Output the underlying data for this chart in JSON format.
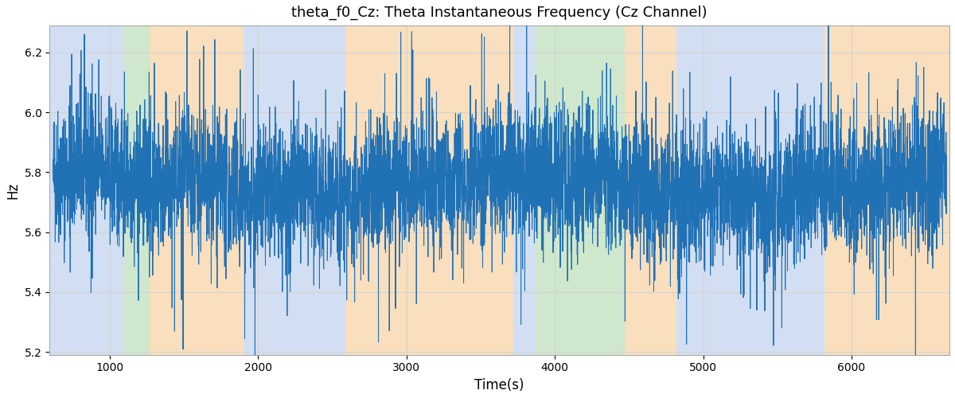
{
  "title": "theta_f0_Cz: Theta Instantaneous Frequency (Cz Channel)",
  "xlabel": "Time(s)",
  "ylabel": "Hz",
  "xlim": [
    595,
    6660
  ],
  "ylim": [
    5.19,
    6.29
  ],
  "yticks": [
    5.2,
    5.4,
    5.6,
    5.8,
    6.0,
    6.2
  ],
  "xticks": [
    1000,
    2000,
    3000,
    4000,
    5000,
    6000
  ],
  "line_color": "#2171b5",
  "line_width": 0.75,
  "bg_regions": [
    {
      "xmin": 595,
      "xmax": 1100,
      "color": "#aec6e8",
      "alpha": 0.55
    },
    {
      "xmin": 1100,
      "xmax": 1270,
      "color": "#a8d5a2",
      "alpha": 0.55
    },
    {
      "xmin": 1270,
      "xmax": 1900,
      "color": "#f5c58a",
      "alpha": 0.55
    },
    {
      "xmin": 1900,
      "xmax": 2460,
      "color": "#aec6e8",
      "alpha": 0.55
    },
    {
      "xmin": 2460,
      "xmax": 2590,
      "color": "#aec6e8",
      "alpha": 0.55
    },
    {
      "xmin": 2590,
      "xmax": 3720,
      "color": "#f5c58a",
      "alpha": 0.55
    },
    {
      "xmin": 3720,
      "xmax": 3870,
      "color": "#aec6e8",
      "alpha": 0.55
    },
    {
      "xmin": 3870,
      "xmax": 4470,
      "color": "#a8d5a2",
      "alpha": 0.55
    },
    {
      "xmin": 4470,
      "xmax": 4820,
      "color": "#f5c58a",
      "alpha": 0.55
    },
    {
      "xmin": 4820,
      "xmax": 5620,
      "color": "#aec6e8",
      "alpha": 0.55
    },
    {
      "xmin": 5620,
      "xmax": 5820,
      "color": "#aec6e8",
      "alpha": 0.55
    },
    {
      "xmin": 5820,
      "xmax": 6660,
      "color": "#f5c58a",
      "alpha": 0.55
    }
  ],
  "seed": 42,
  "n_points": 6000,
  "t_start": 620,
  "t_end": 6640,
  "base_freq": 5.76,
  "noise_std": 0.115,
  "spike_prob": 0.018,
  "spike_amplitude": 0.32
}
